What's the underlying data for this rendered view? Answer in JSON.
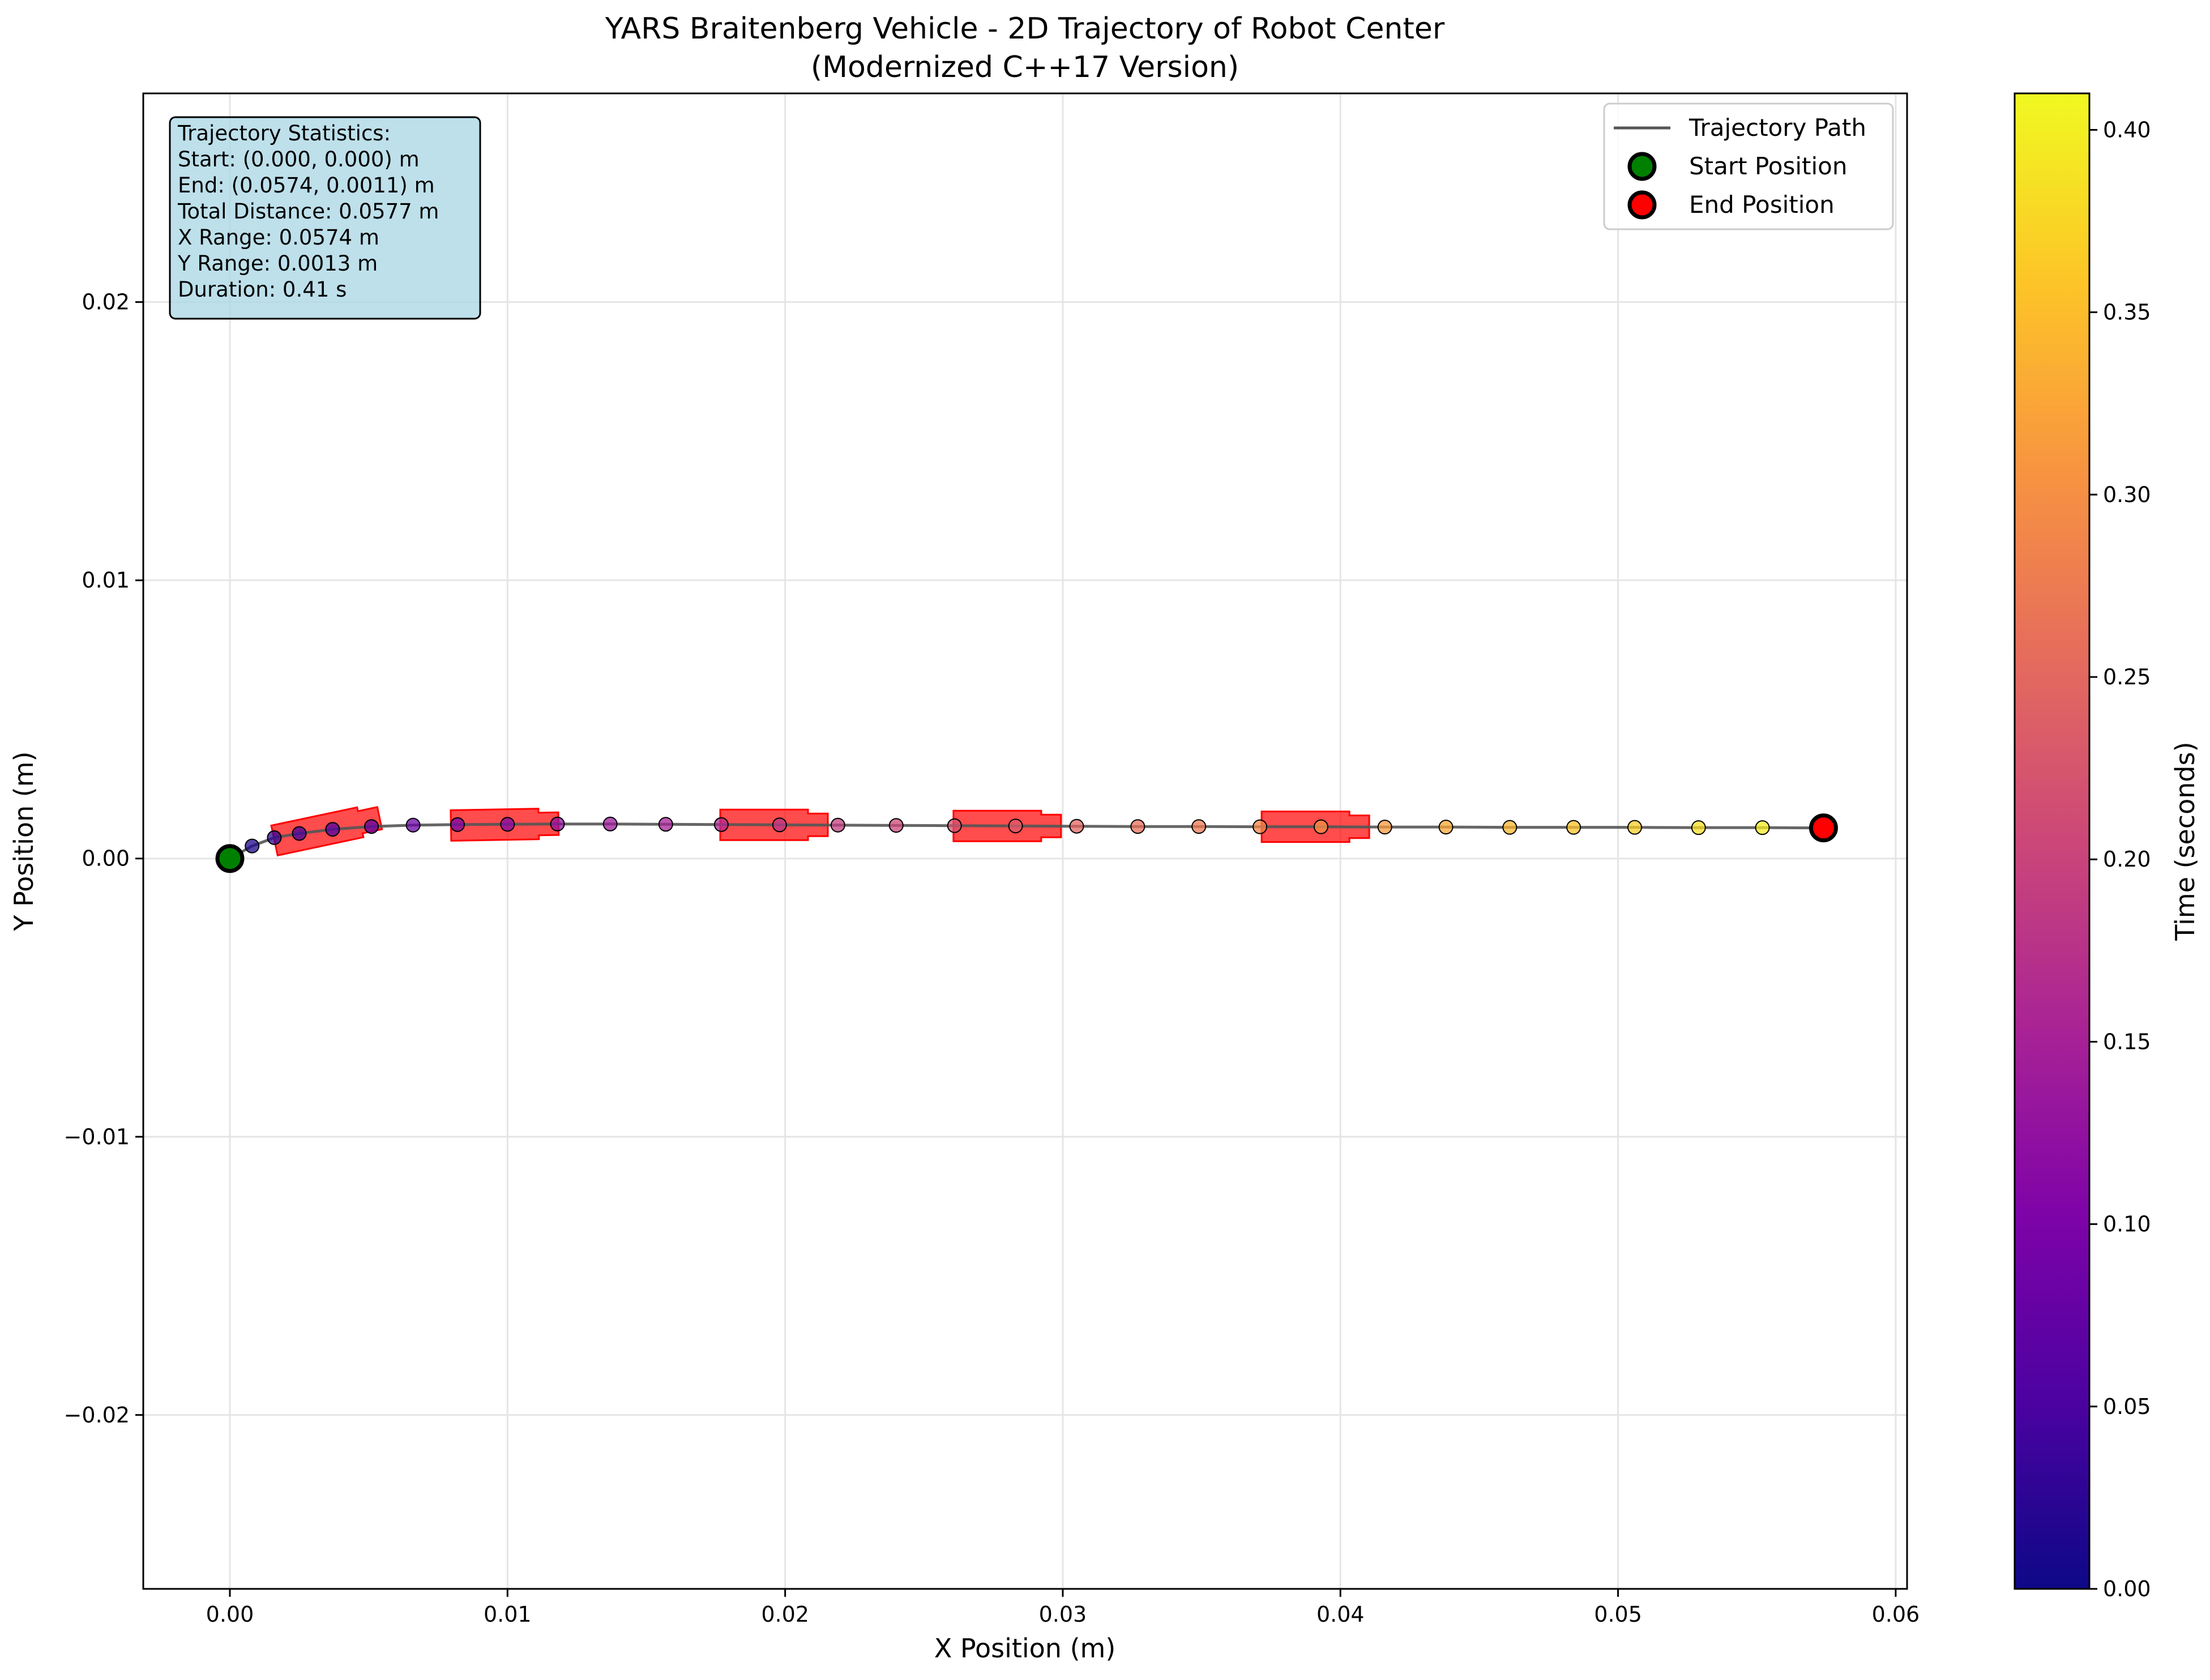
{
  "chart_data": {
    "type": "scatter",
    "title_line1": "YARS Braitenberg Vehicle - 2D Trajectory of Robot Center",
    "title_line2": "(Modernized C++17 Version)",
    "xlabel": "X Position (m)",
    "ylabel": "Y Position (m)",
    "xlim": [
      -0.00312,
      0.06041
    ],
    "ylim": [
      -0.02625,
      0.0275
    ],
    "xticks": [
      0.0,
      0.01,
      0.02,
      0.03,
      0.04,
      0.05,
      0.06
    ],
    "xtick_labels": [
      "0.00",
      "0.01",
      "0.02",
      "0.03",
      "0.04",
      "0.05",
      "0.06"
    ],
    "yticks": [
      -0.02,
      -0.01,
      0.0,
      0.01,
      0.02
    ],
    "ytick_labels": [
      "−0.02",
      "−0.01",
      "0.00",
      "0.01",
      "0.02"
    ],
    "grid": true,
    "legend": {
      "position": "top-right",
      "entries": [
        "Trajectory Path",
        "Start Position",
        "End Position"
      ]
    },
    "colorbar": {
      "label": "Time (seconds)",
      "colormap": "plasma",
      "range": [
        0.0,
        0.41
      ],
      "ticks": [
        0.0,
        0.05,
        0.1,
        0.15,
        0.2,
        0.25,
        0.3,
        0.35,
        0.4
      ],
      "tick_labels": [
        "0.00",
        "0.05",
        "0.10",
        "0.15",
        "0.20",
        "0.25",
        "0.30",
        "0.35",
        "0.40"
      ]
    },
    "stats_box": {
      "lines": [
        "Trajectory Statistics:",
        "Start: (0.000, 0.000) m",
        "End: (0.0574, 0.0011) m",
        "Total Distance: 0.0577 m",
        "X Range: 0.0574 m",
        "Y Range: 0.0013 m",
        "Duration: 0.41 s"
      ]
    },
    "trajectory": {
      "x": [
        0.0,
        0.0008,
        0.0016,
        0.0025,
        0.0037,
        0.0051,
        0.0066,
        0.0082,
        0.01,
        0.0118,
        0.0137,
        0.0157,
        0.0177,
        0.0198,
        0.0219,
        0.024,
        0.0261,
        0.0283,
        0.0305,
        0.0327,
        0.0349,
        0.0371,
        0.0393,
        0.0416,
        0.0438,
        0.0461,
        0.0484,
        0.0506,
        0.0529,
        0.0552,
        0.0574
      ],
      "y": [
        0.0,
        0.00045,
        0.00075,
        0.0009,
        0.00105,
        0.00115,
        0.0012,
        0.00122,
        0.00123,
        0.00124,
        0.00124,
        0.00123,
        0.00122,
        0.00121,
        0.0012,
        0.00119,
        0.00118,
        0.00117,
        0.00116,
        0.00115,
        0.00115,
        0.00114,
        0.00114,
        0.00113,
        0.00113,
        0.00112,
        0.00112,
        0.00112,
        0.00111,
        0.00111,
        0.0011
      ],
      "t": [
        0.0,
        0.014,
        0.028,
        0.041,
        0.055,
        0.068,
        0.082,
        0.096,
        0.109,
        0.123,
        0.137,
        0.15,
        0.164,
        0.178,
        0.191,
        0.205,
        0.219,
        0.232,
        0.246,
        0.26,
        0.273,
        0.287,
        0.301,
        0.314,
        0.328,
        0.342,
        0.355,
        0.369,
        0.383,
        0.396,
        0.41
      ]
    },
    "start": {
      "x": 0.0,
      "y": 0.0,
      "color": "#008000"
    },
    "end": {
      "x": 0.0574,
      "y": 0.0011,
      "color": "#ff0000"
    },
    "robot_markers": [
      {
        "x": 0.0035,
        "y": 0.00105,
        "angle_deg": 12
      },
      {
        "x": 0.0099,
        "y": 0.00122,
        "angle_deg": 1
      },
      {
        "x": 0.0196,
        "y": 0.00121,
        "angle_deg": 0
      },
      {
        "x": 0.028,
        "y": 0.00117,
        "angle_deg": 0
      },
      {
        "x": 0.0391,
        "y": 0.00114,
        "angle_deg": 0
      }
    ],
    "colors": {
      "path_line": "#555555",
      "robot_fill": "#ff0000",
      "stats_box_fill": "#add8e6",
      "grid": "#e5e5e5"
    }
  }
}
